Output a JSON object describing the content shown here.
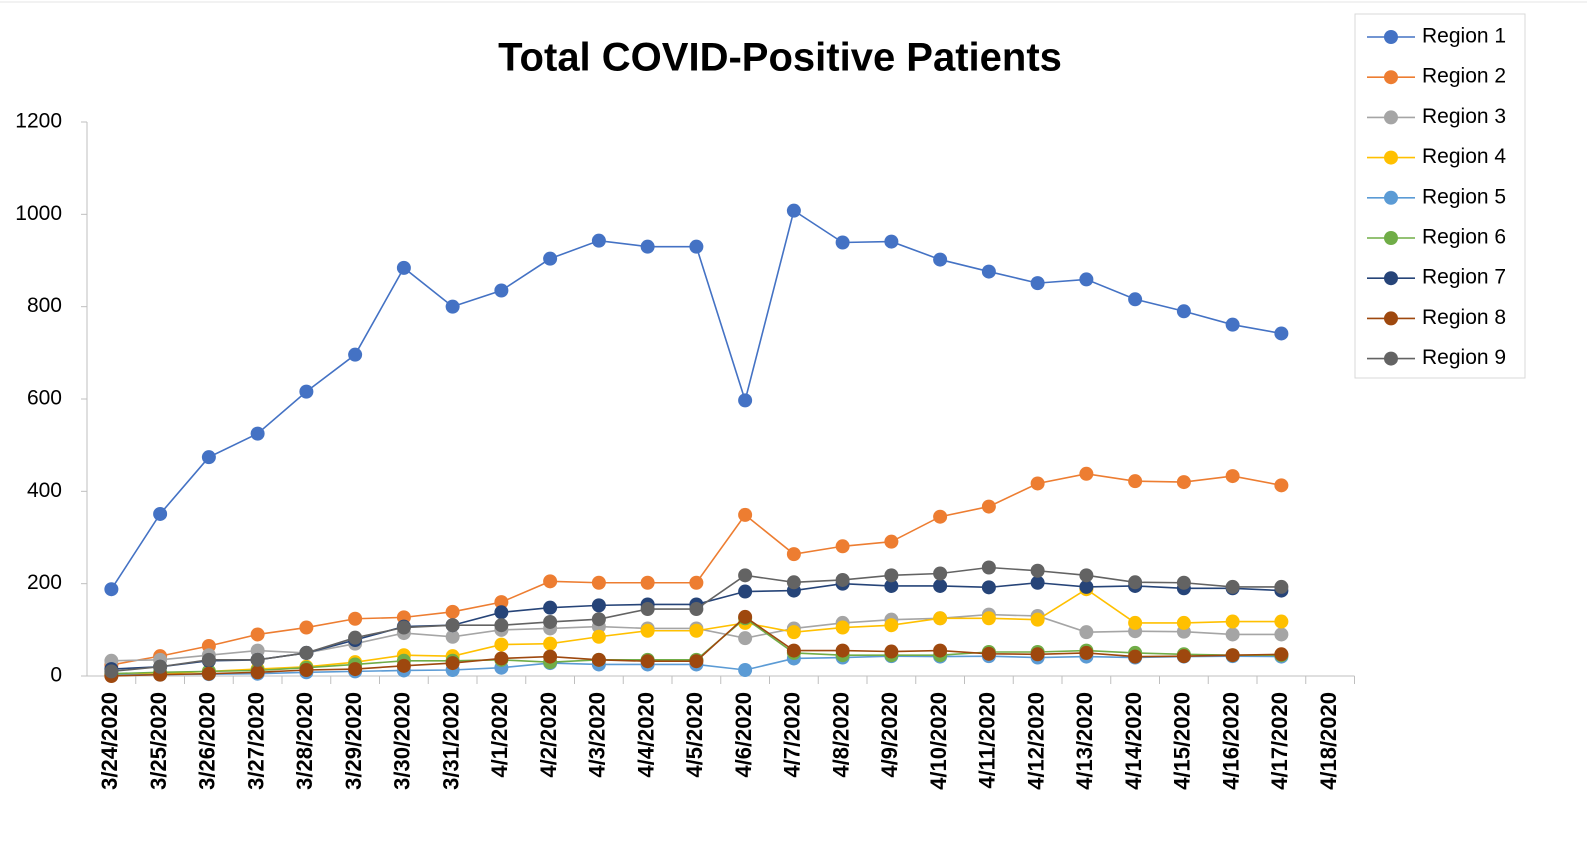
{
  "chart_data": {
    "type": "line",
    "title": "Total COVID-Positive Patients",
    "categories": [
      "3/24/2020",
      "3/25/2020",
      "3/26/2020",
      "3/27/2020",
      "3/28/2020",
      "3/29/2020",
      "3/30/2020",
      "3/31/2020",
      "4/1/2020",
      "4/2/2020",
      "4/3/2020",
      "4/4/2020",
      "4/5/2020",
      "4/6/2020",
      "4/7/2020",
      "4/8/2020",
      "4/9/2020",
      "4/10/2020",
      "4/11/2020",
      "4/12/2020",
      "4/13/2020",
      "4/14/2020",
      "4/15/2020",
      "4/16/2020",
      "4/17/2020",
      "4/18/2020"
    ],
    "series": [
      {
        "name": "Region 1",
        "color": "#4472c4",
        "values": [
          188,
          351,
          474,
          525,
          616,
          696,
          884,
          800,
          835,
          904,
          943,
          930,
          930,
          597,
          1008,
          939,
          941,
          902,
          876,
          851,
          859,
          816,
          790,
          761,
          742,
          null
        ]
      },
      {
        "name": "Region 2",
        "color": "#ed7d31",
        "values": [
          24,
          43,
          65,
          90,
          105,
          124,
          127,
          139,
          160,
          205,
          202,
          202,
          202,
          349,
          264,
          281,
          291,
          345,
          367,
          417,
          438,
          422,
          420,
          433,
          413,
          null
        ]
      },
      {
        "name": "Region 3",
        "color": "#a5a5a5",
        "values": [
          33,
          35,
          45,
          55,
          50,
          70,
          93,
          85,
          100,
          103,
          107,
          103,
          103,
          82,
          103,
          115,
          122,
          125,
          133,
          130,
          95,
          97,
          96,
          90,
          90,
          null
        ]
      },
      {
        "name": "Region 4",
        "color": "#ffc000",
        "values": [
          2,
          5,
          10,
          15,
          20,
          30,
          45,
          43,
          68,
          70,
          85,
          98,
          98,
          115,
          95,
          105,
          110,
          125,
          125,
          122,
          188,
          115,
          115,
          118,
          118,
          null
        ]
      },
      {
        "name": "Region 5",
        "color": "#5b9bd5",
        "values": [
          2,
          3,
          4,
          5,
          8,
          10,
          12,
          13,
          18,
          28,
          25,
          25,
          25,
          13,
          38,
          40,
          43,
          42,
          43,
          40,
          42,
          40,
          42,
          43,
          42,
          null
        ]
      },
      {
        "name": "Region 6",
        "color": "#70ad47",
        "values": [
          5,
          8,
          10,
          12,
          18,
          25,
          33,
          33,
          35,
          30,
          35,
          35,
          35,
          125,
          50,
          45,
          45,
          45,
          52,
          52,
          55,
          50,
          47,
          45,
          45,
          null
        ]
      },
      {
        "name": "Region 7",
        "color": "#264478",
        "values": [
          15,
          20,
          33,
          35,
          50,
          78,
          107,
          110,
          138,
          148,
          153,
          155,
          155,
          183,
          185,
          200,
          195,
          195,
          192,
          202,
          193,
          195,
          190,
          190,
          185,
          null
        ]
      },
      {
        "name": "Region 8",
        "color": "#9e480e",
        "values": [
          0,
          3,
          5,
          8,
          13,
          15,
          22,
          28,
          38,
          42,
          35,
          32,
          32,
          128,
          55,
          55,
          53,
          55,
          48,
          47,
          50,
          42,
          43,
          45,
          47,
          null
        ]
      },
      {
        "name": "Region 9",
        "color": "#636363",
        "values": [
          10,
          20,
          35,
          35,
          50,
          83,
          105,
          110,
          110,
          117,
          123,
          145,
          145,
          218,
          203,
          208,
          218,
          222,
          235,
          228,
          218,
          203,
          202,
          193,
          193,
          null
        ]
      }
    ],
    "ylim": [
      0,
      1200
    ],
    "yticks": [
      0,
      200,
      400,
      600,
      800,
      1000,
      1200
    ],
    "grid": false,
    "legend": "top-right"
  }
}
